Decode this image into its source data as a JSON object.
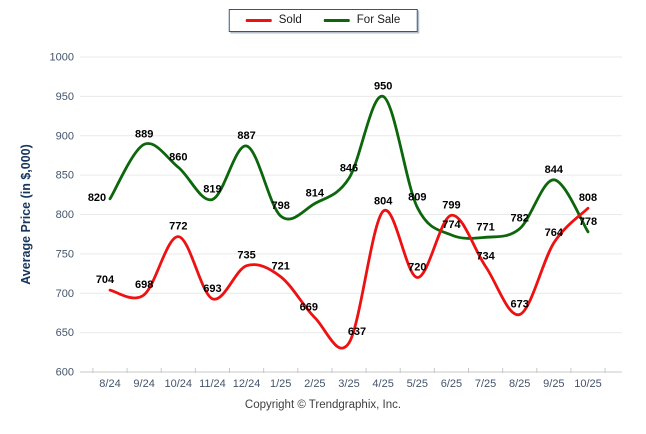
{
  "legend": {
    "items": [
      {
        "label": "Sold",
        "color": "#ee1111"
      },
      {
        "label": "For Sale",
        "color": "#0c660c"
      }
    ]
  },
  "chart_data": {
    "type": "line",
    "title": "",
    "xlabel": "",
    "ylabel": "Average Price (in $,000)",
    "categories": [
      "8/24",
      "9/24",
      "10/24",
      "11/24",
      "12/24",
      "1/25",
      "2/25",
      "3/25",
      "4/25",
      "5/25",
      "6/25",
      "7/25",
      "8/25",
      "9/25",
      "10/25"
    ],
    "series": [
      {
        "name": "Sold",
        "color": "#ee1111",
        "values": [
          704,
          698,
          772,
          693,
          735,
          721,
          669,
          637,
          804,
          720,
          799,
          734,
          673,
          764,
          808
        ]
      },
      {
        "name": "For Sale",
        "color": "#0c660c",
        "values": [
          820,
          889,
          860,
          819,
          887,
          798,
          814,
          846,
          950,
          809,
          774,
          771,
          782,
          844,
          778
        ]
      }
    ],
    "ylim": [
      600,
      1000
    ],
    "y_ticks": [
      600,
      650,
      700,
      750,
      800,
      850,
      900,
      950,
      1000
    ],
    "grid": true,
    "legend_position": "top-center",
    "data_labels": true,
    "curve": "smooth"
  },
  "footer": {
    "copyright": "Copyright © Trendgraphix, Inc."
  },
  "colors": {
    "grid": "#e9e9e9",
    "axis": "#c8c8c8",
    "tick_text": "#44546a",
    "data_label_text": "#000000",
    "ylabel_text": "#17365d",
    "legend_border": "#33567d",
    "background": "#ffffff"
  }
}
